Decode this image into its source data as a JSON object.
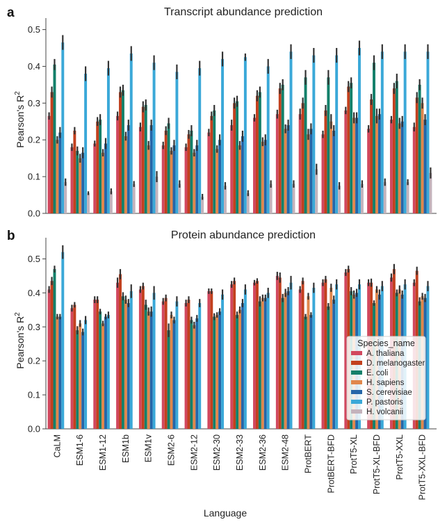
{
  "figure": {
    "panel_a_letter": "a",
    "panel_b_letter": "b",
    "xlabel": "Language"
  },
  "chart_data": [
    {
      "type": "bar",
      "title": "Transcript abundance prediction",
      "ylabel": "Pearson's R2",
      "ylim": [
        0,
        0.52
      ],
      "yticks": [
        0.0,
        0.1,
        0.2,
        0.3,
        0.4,
        0.5
      ],
      "grid": false,
      "categories": [
        "CaLM",
        "ESM1-6",
        "ESM1-12",
        "ESM1b",
        "ESM1v",
        "ESM2-6",
        "ESM2-12",
        "ESM2-30",
        "ESM2-33",
        "ESM2-36",
        "ESM2-48",
        "ProtBERT",
        "ProtBERT-BFD",
        "ProtT5-XL",
        "ProtT5-XL-BFD",
        "ProtT5-XXL",
        "ProtT5-XXL-BFD"
      ],
      "series": [
        {
          "name": "A. thaliana",
          "color": "#d1485e",
          "values": [
            0.265,
            0.18,
            0.19,
            0.265,
            0.235,
            0.185,
            0.18,
            0.22,
            0.24,
            0.26,
            0.27,
            0.27,
            0.215,
            0.28,
            0.23,
            0.255,
            0.235
          ],
          "errors": [
            0.01,
            0.01,
            0.008,
            0.012,
            0.012,
            0.01,
            0.01,
            0.01,
            0.015,
            0.01,
            0.012,
            0.015,
            0.01,
            0.01,
            0.01,
            0.01,
            0.012
          ]
        },
        {
          "name": "D. melanogaster",
          "color": "#c2401e",
          "values": [
            0.33,
            0.225,
            0.25,
            0.33,
            0.29,
            0.225,
            0.215,
            0.265,
            0.3,
            0.32,
            0.34,
            0.3,
            0.28,
            0.345,
            0.31,
            0.34,
            0.315
          ],
          "errors": [
            0.015,
            0.01,
            0.012,
            0.015,
            0.015,
            0.012,
            0.012,
            0.012,
            0.015,
            0.015,
            0.015,
            0.015,
            0.015,
            0.015,
            0.015,
            0.015,
            0.015
          ]
        },
        {
          "name": "E. coli",
          "color": "#13806a",
          "values": [
            0.405,
            0.17,
            0.255,
            0.335,
            0.295,
            0.245,
            0.225,
            0.28,
            0.305,
            0.33,
            0.35,
            0.37,
            0.37,
            0.355,
            0.41,
            0.36,
            0.35
          ],
          "errors": [
            0.015,
            0.012,
            0.015,
            0.015,
            0.015,
            0.015,
            0.015,
            0.015,
            0.015,
            0.015,
            0.015,
            0.02,
            0.02,
            0.015,
            0.02,
            0.02,
            0.015
          ]
        },
        {
          "name": "H. sapiens",
          "color": "#e0874c",
          "values": [
            0.2,
            0.15,
            0.165,
            0.21,
            0.185,
            0.17,
            0.165,
            0.175,
            0.185,
            0.195,
            0.23,
            0.215,
            0.25,
            0.26,
            0.265,
            0.245,
            0.3
          ],
          "errors": [
            0.01,
            0.012,
            0.01,
            0.012,
            0.012,
            0.01,
            0.01,
            0.01,
            0.012,
            0.012,
            0.012,
            0.015,
            0.02,
            0.015,
            0.02,
            0.015,
            0.015
          ]
        },
        {
          "name": "S. cerevisiae",
          "color": "#2566a8",
          "values": [
            0.22,
            0.165,
            0.19,
            0.24,
            0.24,
            0.185,
            0.185,
            0.2,
            0.21,
            0.2,
            0.24,
            0.23,
            0.225,
            0.26,
            0.27,
            0.25,
            0.255
          ],
          "errors": [
            0.015,
            0.015,
            0.015,
            0.015,
            0.015,
            0.015,
            0.015,
            0.015,
            0.015,
            0.015,
            0.015,
            0.015,
            0.015,
            0.015,
            0.015,
            0.015,
            0.015
          ]
        },
        {
          "name": "P. pastoris",
          "color": "#3aa8d8",
          "values": [
            0.465,
            0.38,
            0.395,
            0.435,
            0.41,
            0.385,
            0.395,
            0.42,
            0.425,
            0.4,
            0.44,
            0.43,
            0.43,
            0.45,
            0.44,
            0.44,
            0.44
          ],
          "errors": [
            0.02,
            0.02,
            0.02,
            0.02,
            0.02,
            0.02,
            0.02,
            0.02,
            0.01,
            0.02,
            0.02,
            0.02,
            0.02,
            0.02,
            0.02,
            0.02,
            0.02
          ]
        },
        {
          "name": "H. volcanii",
          "color": "#c4b3bc",
          "values": [
            0.085,
            0.055,
            0.06,
            0.08,
            0.1,
            0.08,
            0.045,
            0.075,
            0.055,
            0.08,
            0.08,
            0.12,
            0.075,
            0.08,
            0.085,
            0.085,
            0.11
          ],
          "errors": [
            0.01,
            0.005,
            0.008,
            0.008,
            0.015,
            0.01,
            0.008,
            0.01,
            0.008,
            0.01,
            0.01,
            0.015,
            0.01,
            0.01,
            0.01,
            0.008,
            0.015
          ]
        }
      ]
    },
    {
      "type": "bar",
      "title": "Protein abundance prediction",
      "ylabel": "Pearson's R2",
      "ylim": [
        0,
        0.55
      ],
      "yticks": [
        0.0,
        0.1,
        0.2,
        0.3,
        0.4,
        0.5
      ],
      "grid": false,
      "legend": {
        "title": "Species_name",
        "placement": "lower-right"
      },
      "categories": [
        "CaLM",
        "ESM1-6",
        "ESM1-12",
        "ESM1b",
        "ESM1v",
        "ESM2-6",
        "ESM2-12",
        "ESM2-30",
        "ESM2-33",
        "ESM2-36",
        "ESM2-48",
        "ProtBERT",
        "ProtBERT-BFD",
        "ProtT5-XL",
        "ProtT5-XL-BFD",
        "ProtT5-XXL",
        "ProtT5-XXL-BFD"
      ],
      "series": [
        {
          "name": "A. thaliana",
          "color": "#d1485e",
          "values": [
            0.41,
            0.355,
            0.38,
            0.43,
            0.41,
            0.375,
            0.37,
            0.405,
            0.425,
            0.43,
            0.45,
            0.41,
            0.43,
            0.46,
            0.43,
            0.445,
            0.43
          ],
          "errors": [
            0.01,
            0.01,
            0.01,
            0.015,
            0.01,
            0.01,
            0.01,
            0.008,
            0.01,
            0.008,
            0.012,
            0.01,
            0.01,
            0.01,
            0.01,
            0.012,
            0.01
          ]
        },
        {
          "name": "D. melanogaster",
          "color": "#c2401e",
          "values": [
            0.435,
            0.365,
            0.38,
            0.455,
            0.42,
            0.385,
            0.38,
            0.405,
            0.435,
            0.435,
            0.445,
            0.435,
            0.44,
            0.47,
            0.43,
            0.47,
            0.465
          ],
          "errors": [
            0.012,
            0.008,
            0.01,
            0.015,
            0.01,
            0.01,
            0.01,
            0.008,
            0.01,
            0.008,
            0.015,
            0.01,
            0.01,
            0.01,
            0.012,
            0.015,
            0.012
          ]
        },
        {
          "name": "E. coli",
          "color": "#13806a",
          "values": [
            0.47,
            0.29,
            0.345,
            0.39,
            0.365,
            0.29,
            0.32,
            0.33,
            0.335,
            0.375,
            0.385,
            0.33,
            0.36,
            0.405,
            0.37,
            0.4,
            0.375
          ],
          "errors": [
            0.01,
            0.012,
            0.008,
            0.012,
            0.015,
            0.02,
            0.01,
            0.01,
            0.01,
            0.015,
            0.012,
            0.008,
            0.01,
            0.012,
            0.008,
            0.01,
            0.012
          ]
        },
        {
          "name": "H. sapiens",
          "color": "#e0874c",
          "values": [
            0.33,
            0.31,
            0.31,
            0.38,
            0.345,
            0.335,
            0.305,
            0.335,
            0.35,
            0.385,
            0.4,
            0.39,
            0.415,
            0.395,
            0.41,
            0.41,
            0.39
          ],
          "errors": [
            0.008,
            0.01,
            0.008,
            0.012,
            0.012,
            0.01,
            0.01,
            0.008,
            0.01,
            0.01,
            0.012,
            0.01,
            0.012,
            0.012,
            0.01,
            0.012,
            0.01
          ]
        },
        {
          "name": "S. cerevisiae",
          "color": "#2566a8",
          "values": [
            0.33,
            0.285,
            0.33,
            0.37,
            0.345,
            0.32,
            0.325,
            0.345,
            0.37,
            0.385,
            0.405,
            0.335,
            0.38,
            0.4,
            0.395,
            0.395,
            0.385
          ],
          "errors": [
            0.008,
            0.01,
            0.008,
            0.012,
            0.015,
            0.01,
            0.01,
            0.01,
            0.012,
            0.01,
            0.012,
            0.008,
            0.012,
            0.012,
            0.015,
            0.012,
            0.012
          ]
        },
        {
          "name": "P. pastoris",
          "color": "#3aa8d8",
          "values": [
            0.52,
            0.32,
            0.335,
            0.405,
            0.4,
            0.375,
            0.37,
            0.395,
            0.41,
            0.4,
            0.43,
            0.415,
            0.425,
            0.425,
            0.42,
            0.425,
            0.42
          ],
          "errors": [
            0.02,
            0.012,
            0.01,
            0.02,
            0.02,
            0.015,
            0.012,
            0.015,
            0.015,
            0.015,
            0.02,
            0.015,
            0.015,
            0.015,
            0.015,
            0.015,
            0.015
          ]
        },
        {
          "name": "H. volcanii",
          "color": "#c4b3bc",
          "values": [
            0.0,
            0.0,
            0.0,
            0.0,
            0.0,
            0.0,
            0.0,
            0.0,
            0.0,
            0.0,
            0.0,
            0.0,
            0.0,
            0.0,
            0.0,
            0.0,
            0.0
          ],
          "errors": [
            0,
            0,
            0,
            0,
            0,
            0,
            0,
            0,
            0,
            0,
            0,
            0,
            0,
            0,
            0,
            0,
            0
          ]
        }
      ]
    }
  ]
}
